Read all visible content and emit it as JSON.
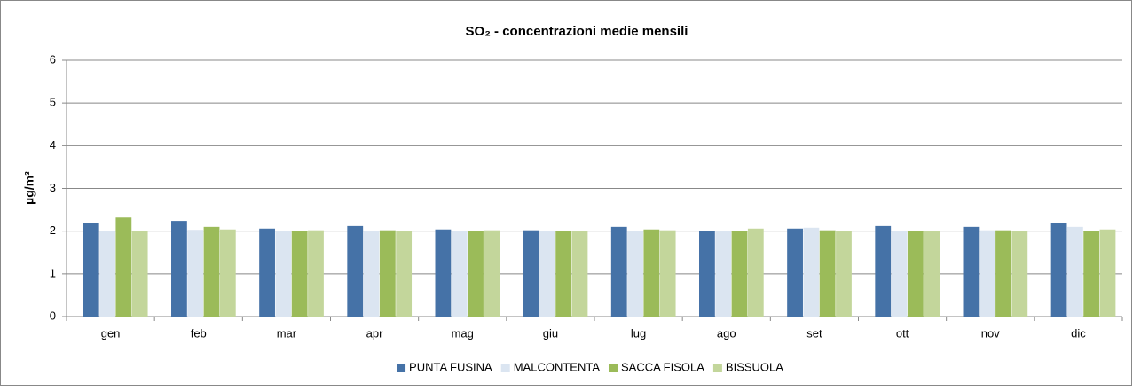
{
  "chart_data": {
    "type": "bar",
    "title": "SO₂ - concentrazioni medie mensili",
    "y_label": "µg/m³",
    "categories": [
      "gen",
      "feb",
      "mar",
      "apr",
      "mag",
      "giu",
      "lug",
      "ago",
      "set",
      "ott",
      "nov",
      "dic"
    ],
    "series": [
      {
        "name": "PUNTA FUSINA",
        "color": "#4572a7",
        "values": [
          2.18,
          2.24,
          2.06,
          2.12,
          2.04,
          2.02,
          2.1,
          2.0,
          2.06,
          2.12,
          2.1,
          2.18
        ]
      },
      {
        "name": "MALCONTENTA",
        "color": "#dbe5f1",
        "values": [
          2.0,
          2.03,
          2.0,
          2.0,
          2.0,
          2.0,
          2.0,
          2.0,
          2.08,
          2.0,
          2.02,
          2.1
        ]
      },
      {
        "name": "SACCA FISOLA",
        "color": "#9bbb59",
        "values": [
          2.32,
          2.1,
          2.0,
          2.02,
          2.0,
          2.0,
          2.04,
          2.0,
          2.02,
          2.0,
          2.02,
          2.0
        ]
      },
      {
        "name": "BISSUOLA",
        "color": "#c3d69b",
        "values": [
          2.0,
          2.04,
          2.02,
          2.0,
          2.02,
          2.0,
          2.02,
          2.06,
          2.0,
          2.0,
          2.0,
          2.04
        ]
      }
    ],
    "ylim": [
      0,
      6
    ],
    "yticks": [
      0,
      1,
      2,
      3,
      4,
      5,
      6
    ],
    "grid": true,
    "legend": "bottom"
  }
}
